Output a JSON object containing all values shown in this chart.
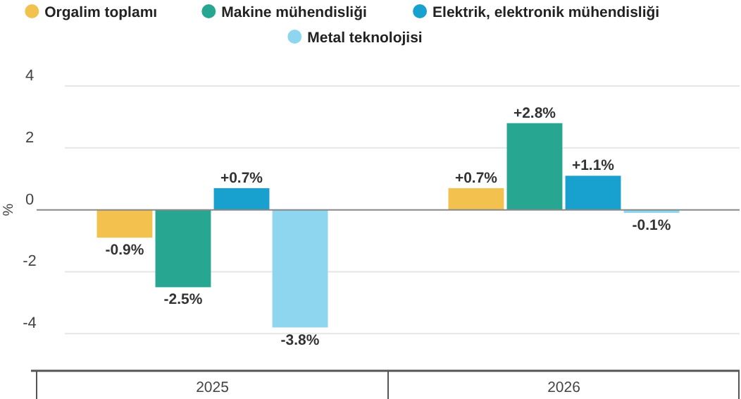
{
  "chart_data": {
    "type": "bar",
    "categories": [
      "2025",
      "2026"
    ],
    "ylabel": "%",
    "ylim": [
      -5.2,
      4
    ],
    "yticks": [
      -4,
      -2,
      0,
      2,
      4
    ],
    "grid": "y",
    "legend": "top",
    "series": [
      {
        "name": "Orgalim toplamı",
        "color": "#f2c14e",
        "values": [
          -0.9,
          0.7
        ],
        "value_labels": [
          "-0.9%",
          "+0.7%"
        ]
      },
      {
        "name": "Makine mühendisliği",
        "color": "#27a792",
        "values": [
          -2.5,
          2.8
        ],
        "value_labels": [
          "-2.5%",
          "+2.8%"
        ]
      },
      {
        "name": "Elektrik, elektronik mühendisliği",
        "color": "#18a0cf",
        "values": [
          0.7,
          1.1
        ],
        "value_labels": [
          "+0.7%",
          "+1.1%"
        ]
      },
      {
        "name": "Metal teknolojisi",
        "color": "#8ed6ef",
        "values": [
          -3.8,
          -0.1
        ],
        "value_labels": [
          "-3.8%",
          "-0.1%"
        ]
      }
    ]
  }
}
